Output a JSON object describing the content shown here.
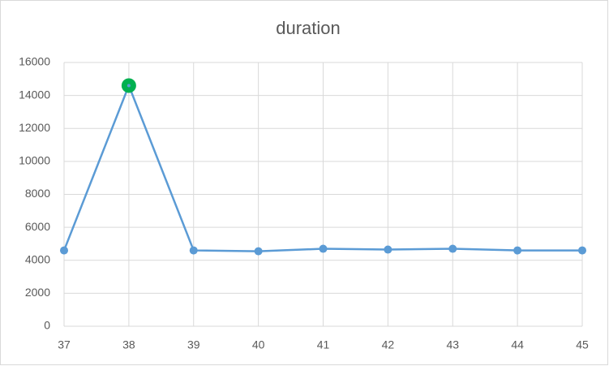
{
  "chart_data": {
    "type": "line",
    "title": "duration",
    "x": [
      37,
      38,
      39,
      40,
      41,
      42,
      43,
      44,
      45
    ],
    "series": [
      {
        "name": "duration",
        "color": "#5b9bd5",
        "values": [
          4600,
          14600,
          4600,
          4550,
          4700,
          4650,
          4700,
          4600,
          4600
        ]
      }
    ],
    "xlim": [
      37,
      45
    ],
    "xticks": [
      37,
      38,
      39,
      40,
      41,
      42,
      43,
      44,
      45
    ],
    "ylim": [
      0,
      16000
    ],
    "yticks": [
      0,
      2000,
      4000,
      6000,
      8000,
      10000,
      12000,
      14000,
      16000
    ],
    "grid": true,
    "highlight_x": 38,
    "highlight_color": "#00b050"
  }
}
